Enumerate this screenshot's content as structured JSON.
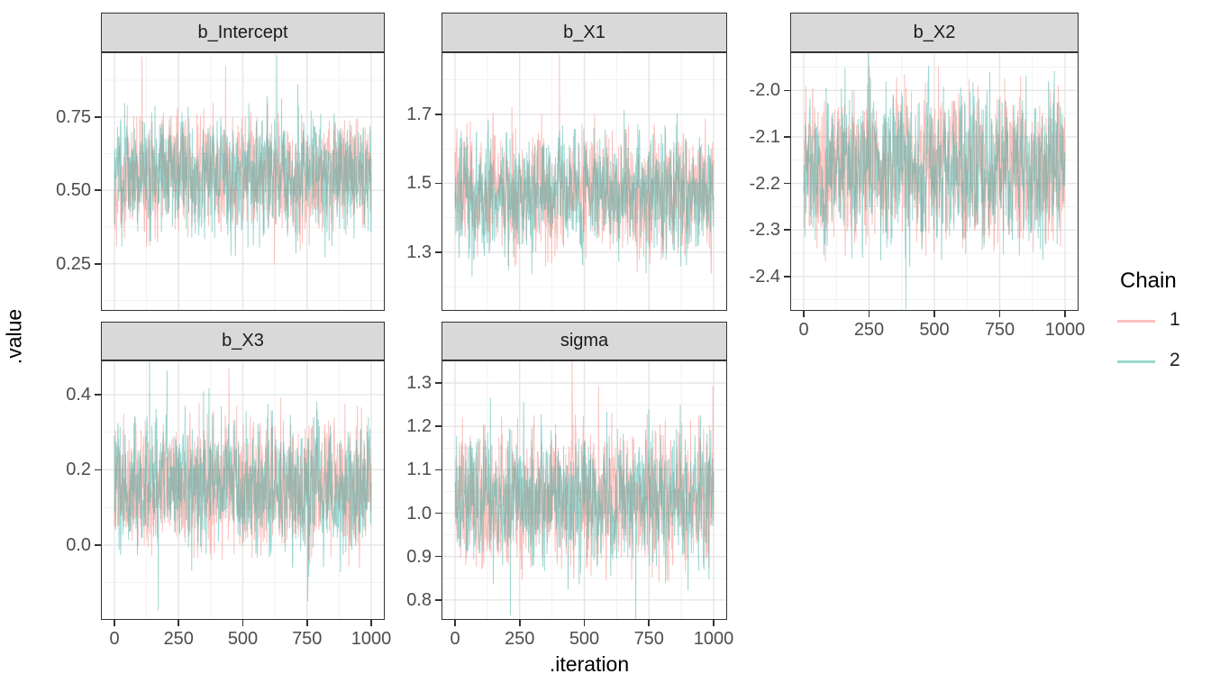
{
  "figure": {
    "y_axis_title": ".value",
    "x_axis_title": ".iteration"
  },
  "chart_data": {
    "type": "line",
    "subtype": "mcmc-trace-plot-faceted",
    "title": "",
    "xlabel": ".iteration",
    "ylabel": ".value",
    "grid": "on",
    "legend": {
      "title": "Chain",
      "position": "right"
    },
    "n_iterations": 1000,
    "n_chains": 2,
    "series": [
      {
        "name": "1",
        "color": "rgba(247,118,109,0.45)",
        "color_solid": "#f8766d"
      },
      {
        "name": "2",
        "color": "rgba(38,166,154,0.45)",
        "color_solid": "#26a69a"
      }
    ],
    "x": {
      "range": [
        0,
        1000
      ],
      "tick_values": [
        0,
        250,
        500,
        750,
        1000
      ],
      "ticks": [
        "0",
        "250",
        "500",
        "750",
        "1000"
      ],
      "minor": [
        125,
        375,
        625,
        875
      ]
    },
    "facets": [
      {
        "title": "b_Intercept",
        "y_tick_values": [
          0.75,
          0.5,
          0.25
        ],
        "y_tick_labels": [
          "0.75",
          "0.50",
          "0.25"
        ],
        "y_minor": [
          0.875,
          0.625,
          0.375,
          0.125
        ],
        "y_domain": [
          0.09,
          0.97
        ],
        "mean": 0.55,
        "sd": 0.095,
        "observed_range": [
          0.17,
          0.95
        ]
      },
      {
        "title": "b_X1",
        "y_tick_values": [
          1.7,
          1.5,
          1.3
        ],
        "y_tick_labels": [
          "1.7",
          "1.5",
          "1.3"
        ],
        "y_minor": [
          1.8,
          1.6,
          1.4,
          1.2
        ],
        "y_domain": [
          1.13,
          1.88
        ],
        "mean": 1.47,
        "sd": 0.082,
        "observed_range": [
          1.18,
          1.82
        ]
      },
      {
        "title": "b_X2",
        "y_tick_values": [
          -2.0,
          -2.1,
          -2.2,
          -2.3,
          -2.4
        ],
        "y_tick_labels": [
          "-2.0",
          "-2.1",
          "-2.2",
          "-2.3",
          "-2.4"
        ],
        "y_minor": [
          -1.95,
          -2.05,
          -2.15,
          -2.25,
          -2.35,
          -2.45
        ],
        "y_domain": [
          -2.474,
          -1.918
        ],
        "mean": -2.17,
        "sd": 0.078,
        "observed_range": [
          -2.45,
          -1.95
        ]
      },
      {
        "title": "b_X3",
        "y_tick_values": [
          0.4,
          0.2,
          0.0
        ],
        "y_tick_labels": [
          "0.4",
          "0.2",
          "0.0"
        ],
        "y_minor": [
          0.3,
          0.1,
          -0.1
        ],
        "y_domain": [
          -0.199,
          0.491
        ],
        "mean": 0.155,
        "sd": 0.083,
        "observed_range": [
          -0.16,
          0.47
        ]
      },
      {
        "title": "sigma",
        "y_tick_values": [
          1.3,
          1.2,
          1.1,
          1.0,
          0.9,
          0.8
        ],
        "y_tick_labels": [
          "1.3",
          "1.2",
          "1.1",
          "1.0",
          "0.9",
          "0.8"
        ],
        "y_minor": [
          1.35,
          1.25,
          1.15,
          1.05,
          0.95,
          0.85
        ],
        "y_domain": [
          0.754,
          1.352
        ],
        "mean": 1.03,
        "sd": 0.075,
        "observed_range": [
          0.78,
          1.33
        ]
      }
    ]
  }
}
